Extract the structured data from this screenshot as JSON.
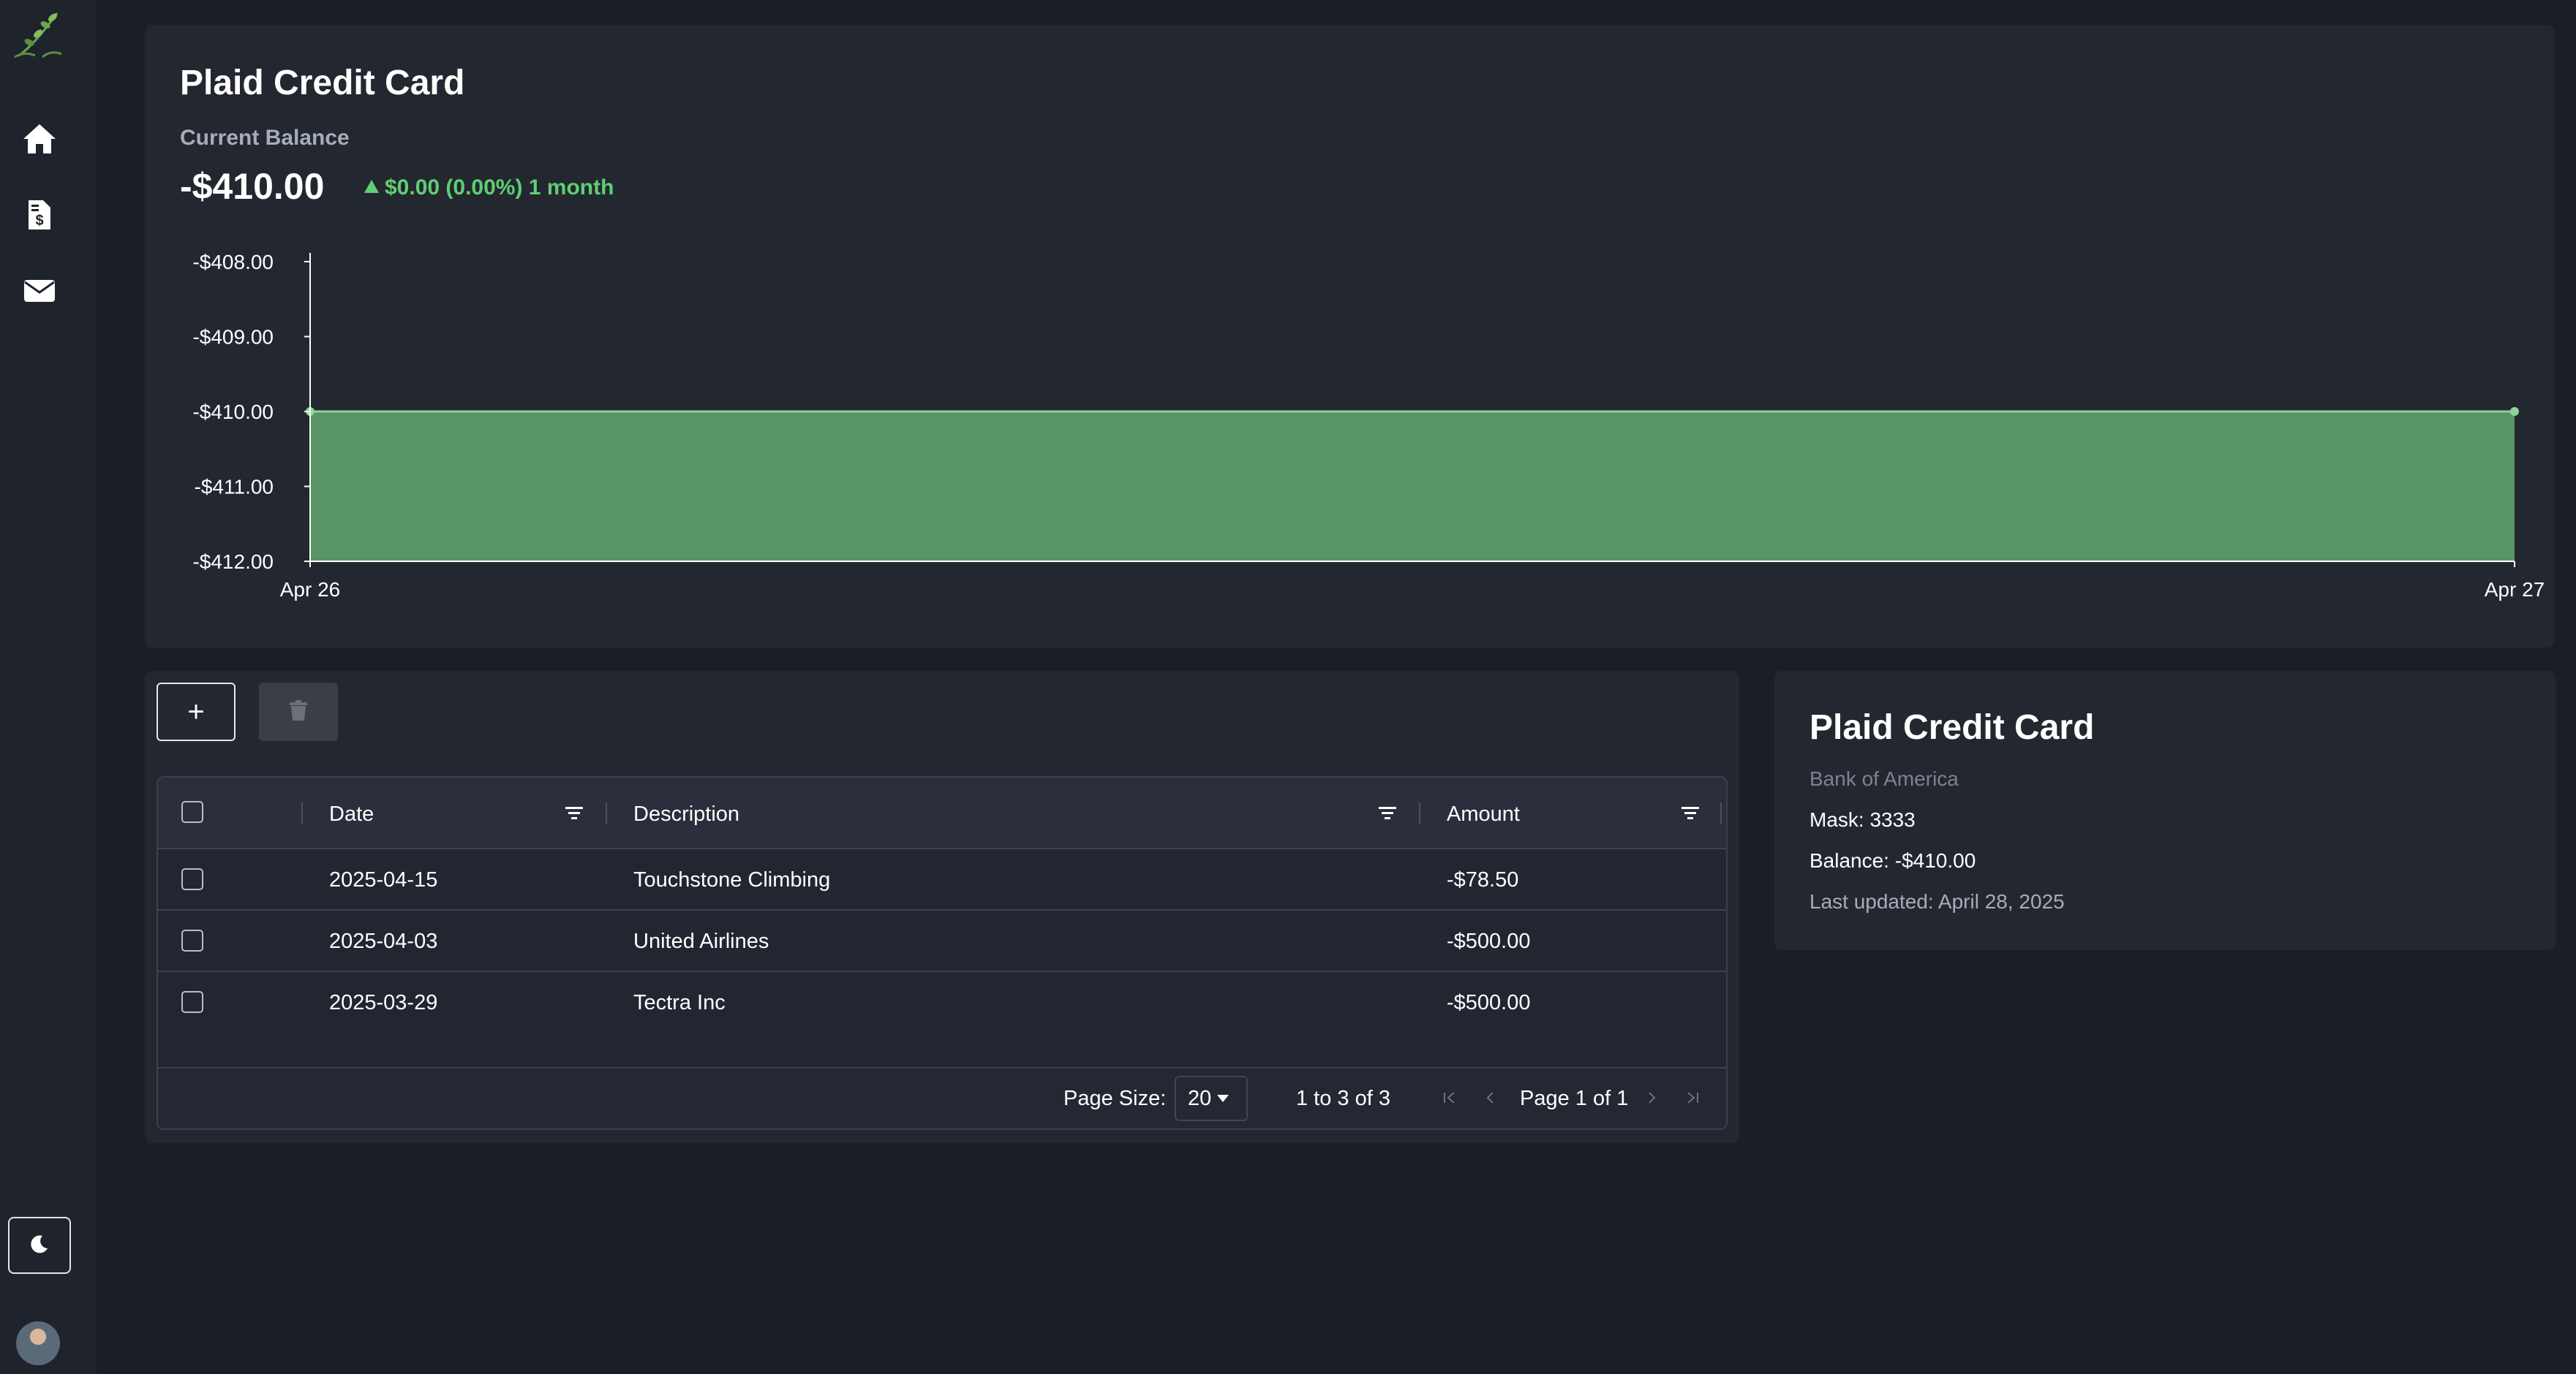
{
  "sidebar": {
    "logo": "sprout-logo-icon",
    "items": [
      {
        "icon": "home-icon"
      },
      {
        "icon": "invoice-dollar-icon"
      },
      {
        "icon": "mail-icon"
      }
    ],
    "theme_toggle": "moon-icon",
    "avatar": "user-avatar"
  },
  "account": {
    "title": "Plaid Credit Card",
    "balance_label": "Current Balance",
    "balance": "-$410.00",
    "change": "$0.00 (0.00%) 1 month"
  },
  "chart_data": {
    "type": "area",
    "x": [
      "Apr 26",
      "Apr 27"
    ],
    "values": [
      -410.0,
      -410.0
    ],
    "y_ticks": [
      "-$408.00",
      "-$409.00",
      "-$410.00",
      "-$411.00",
      "-$412.00"
    ],
    "ylim": [
      -412,
      -408
    ],
    "grid": false,
    "colors": {
      "fill": "#579664",
      "line": "#8fd49a"
    }
  },
  "toolbar": {
    "add_label": "+",
    "delete_icon": "trash-icon"
  },
  "table": {
    "columns": [
      "Date",
      "Description",
      "Amount"
    ],
    "rows": [
      {
        "date": "2025-04-15",
        "description": "Touchstone Climbing",
        "amount": "-$78.50"
      },
      {
        "date": "2025-04-03",
        "description": "United Airlines",
        "amount": "-$500.00"
      },
      {
        "date": "2025-03-29",
        "description": "Tectra Inc",
        "amount": "-$500.00"
      }
    ],
    "footer": {
      "page_size_label": "Page Size:",
      "page_size": "20",
      "range": "1 to 3 of 3",
      "page_info": "Page 1 of 1"
    }
  },
  "info": {
    "title": "Plaid Credit Card",
    "bank": "Bank of America",
    "mask": "Mask: 3333",
    "balance": "Balance: -$410.00",
    "updated": "Last updated: April 28, 2025"
  },
  "colors": {
    "background": "#1b1e25",
    "card": "#232730",
    "positive": "#5fcf72"
  }
}
